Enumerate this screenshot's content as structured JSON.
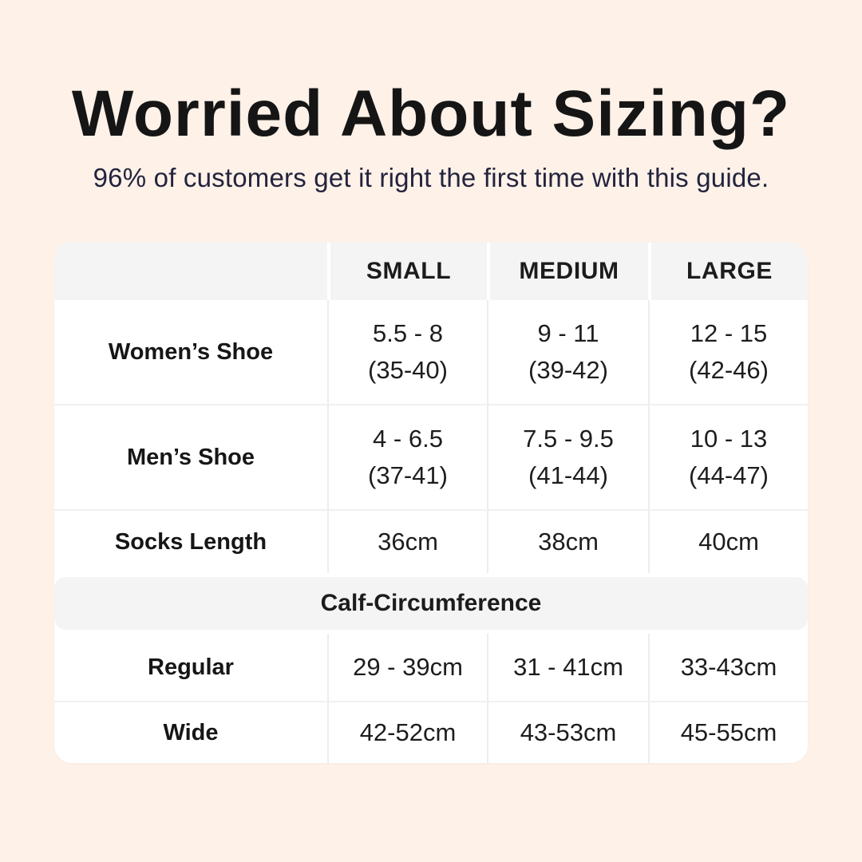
{
  "chart_data": {
    "type": "table",
    "title": "Worried About Sizing?",
    "subtitle": "96% of customers get it right the first time with this guide.",
    "columns": [
      "",
      "SMALL",
      "MEDIUM",
      "LARGE"
    ],
    "section_header": "Calf-Circumference",
    "rows": [
      {
        "label": "Women’s Shoe",
        "cells": [
          [
            "5.5 - 8",
            "(35-40)"
          ],
          [
            "9 - 11",
            "(39-42)"
          ],
          [
            "12 - 15",
            "(42-46)"
          ]
        ]
      },
      {
        "label": "Men’s Shoe",
        "cells": [
          [
            "4 - 6.5",
            "(37-41)"
          ],
          [
            "7.5 - 9.5",
            "(41-44)"
          ],
          [
            "10 - 13",
            "(44-47)"
          ]
        ]
      },
      {
        "label": "Socks Length",
        "cells": [
          [
            "36cm"
          ],
          [
            "38cm"
          ],
          [
            "40cm"
          ]
        ]
      },
      {
        "label": "Calf-Circumference",
        "section": true,
        "cells": []
      },
      {
        "label": "Regular",
        "cells": [
          [
            "29 - 39cm"
          ],
          [
            "31 - 41cm"
          ],
          [
            "33-43cm"
          ]
        ]
      },
      {
        "label": "Wide",
        "cells": [
          [
            "42-52cm"
          ],
          [
            "43-53cm"
          ],
          [
            "45-55cm"
          ]
        ]
      }
    ],
    "layout_hints": {
      "table_position": "centered below title",
      "section_band_spans_full_width": true,
      "shoe_cells_two_lines": "US size range on line 1, EU size range in parentheses on line 2"
    }
  },
  "colors": {
    "page_background": "#fdf1e8",
    "card_background": "#ffffff",
    "header_band": "#f4f4f5",
    "section_band": "#f4f4f5",
    "divider": "#ededee",
    "title_text": "#151515",
    "subtitle_text": "#23233e",
    "table_text": "#1d1d1d"
  }
}
